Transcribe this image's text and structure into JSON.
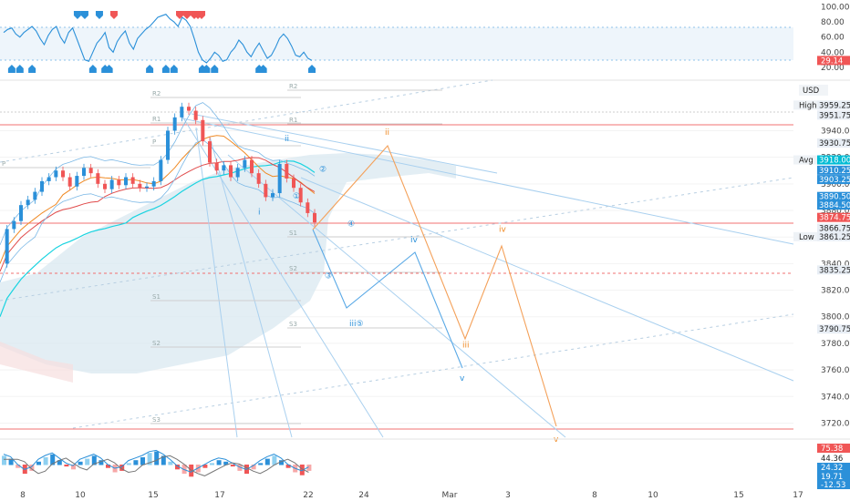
{
  "chart_data": {
    "type": "line",
    "symbol_unit": "USD",
    "x_ticks": [
      "8",
      "10",
      "15",
      "17",
      "22",
      "24",
      "Mar",
      "3",
      "8",
      "10",
      "15",
      "17"
    ],
    "price_axis": {
      "ticks": [
        3940,
        3920,
        3900,
        3880,
        3860,
        3840,
        3820,
        3800,
        3780,
        3760,
        3740,
        3720
      ],
      "range": [
        3708,
        3978
      ]
    },
    "price_tags": [
      {
        "text": "3959.25",
        "value": 3959.25,
        "label": "High",
        "bg": "#e8eef5",
        "fg": "#222"
      },
      {
        "text": "3951.75",
        "value": 3951.75,
        "label": "",
        "bg": "#e8eef5",
        "fg": "#222"
      },
      {
        "text": "3930.75",
        "value": 3930.75,
        "label": "",
        "bg": "#e8eef5",
        "fg": "#222"
      },
      {
        "text": "3918.00",
        "value": 3918.0,
        "label": "Avg",
        "bg": "#00bcd4",
        "fg": "#fff"
      },
      {
        "text": "3910.25",
        "value": 3910.25,
        "label": "",
        "bg": "#2b90d9",
        "fg": "#fff"
      },
      {
        "text": "3903.25",
        "value": 3903.25,
        "label": "",
        "bg": "#2b90d9",
        "fg": "#fff"
      },
      {
        "text": "3890.50",
        "value": 3890.5,
        "label": "",
        "bg": "#2b90d9",
        "fg": "#fff"
      },
      {
        "text": "3884.50",
        "value": 3884.5,
        "label": "",
        "bg": "#2b90d9",
        "fg": "#fff"
      },
      {
        "text": "3874.75",
        "value": 3874.75,
        "label": "",
        "bg": "#f05656",
        "fg": "#fff"
      },
      {
        "text": "3866.75",
        "value": 3866.75,
        "label": "",
        "bg": "#e8eef5",
        "fg": "#222"
      },
      {
        "text": "3861.25",
        "value": 3861.25,
        "label": "Low",
        "bg": "#e8eef5",
        "fg": "#222"
      },
      {
        "text": "3835.25",
        "value": 3835.25,
        "label": "",
        "bg": "#e8eef5",
        "fg": "#222"
      },
      {
        "text": "3790.75",
        "value": 3790.75,
        "label": "",
        "bg": "#e8eef5",
        "fg": "#222"
      }
    ],
    "rsi": {
      "ticks": [
        100,
        80,
        60,
        40,
        20
      ],
      "range": [
        8,
        104
      ],
      "upper": 70,
      "lower": 30,
      "current": {
        "text": "29.14",
        "value": 29.14
      },
      "values": [
        66,
        70,
        72,
        64,
        60,
        66,
        70,
        74,
        68,
        58,
        50,
        62,
        70,
        74,
        60,
        52,
        66,
        72,
        58,
        44,
        30,
        28,
        40,
        52,
        58,
        66,
        46,
        40,
        54,
        62,
        68,
        52,
        44,
        58,
        64,
        70,
        74,
        80,
        86,
        88,
        90,
        84,
        80,
        74,
        86,
        82,
        74,
        58,
        40,
        30,
        26,
        32,
        40,
        36,
        28,
        30,
        40,
        46,
        56,
        50,
        40,
        34,
        44,
        52,
        42,
        32,
        36,
        46,
        58,
        64,
        58,
        48,
        36,
        34,
        40,
        32,
        29.14
      ]
    },
    "waves_blue": [
      {
        "label": "ii",
        "price": 3932
      },
      {
        "label": "②",
        "price": 3909
      },
      {
        "label": "①",
        "price": 3889
      },
      {
        "label": "i",
        "price": 3877
      },
      {
        "label": "④",
        "price": 3868
      },
      {
        "label": "iv",
        "price": 3856
      },
      {
        "label": "③",
        "price": 3829
      },
      {
        "label": "iii⑤",
        "price": 3793
      },
      {
        "label": "v",
        "price": 3752
      }
    ],
    "waves_orange": [
      {
        "label": "ii",
        "price": 3937
      },
      {
        "label": "iv",
        "price": 3864
      },
      {
        "label": "iii",
        "price": 3777
      },
      {
        "label": "v",
        "price": 3706
      }
    ],
    "pivot_labels": [
      "R2",
      "R1",
      "P",
      "S1",
      "S2",
      "S3",
      "S1",
      "S2",
      "S3",
      "R2",
      "R1",
      "P"
    ],
    "macd": {
      "tags": [
        {
          "text": "75.38",
          "bg": "#f05656"
        },
        {
          "text": "44.36",
          "bg": "#ffffff",
          "fg": "#222"
        },
        {
          "text": "24.32",
          "bg": "#2b90d9"
        },
        {
          "text": "19.71",
          "bg": "#2b90d9"
        },
        {
          "text": "-12.53",
          "bg": "#2b90d9"
        }
      ]
    },
    "colors": {
      "up_blue": "#2b90d9",
      "down_red": "#f05656",
      "orange": "#f08a24",
      "cyan_ma": "#19d3e0",
      "cloud": "#d6e6ee"
    }
  }
}
